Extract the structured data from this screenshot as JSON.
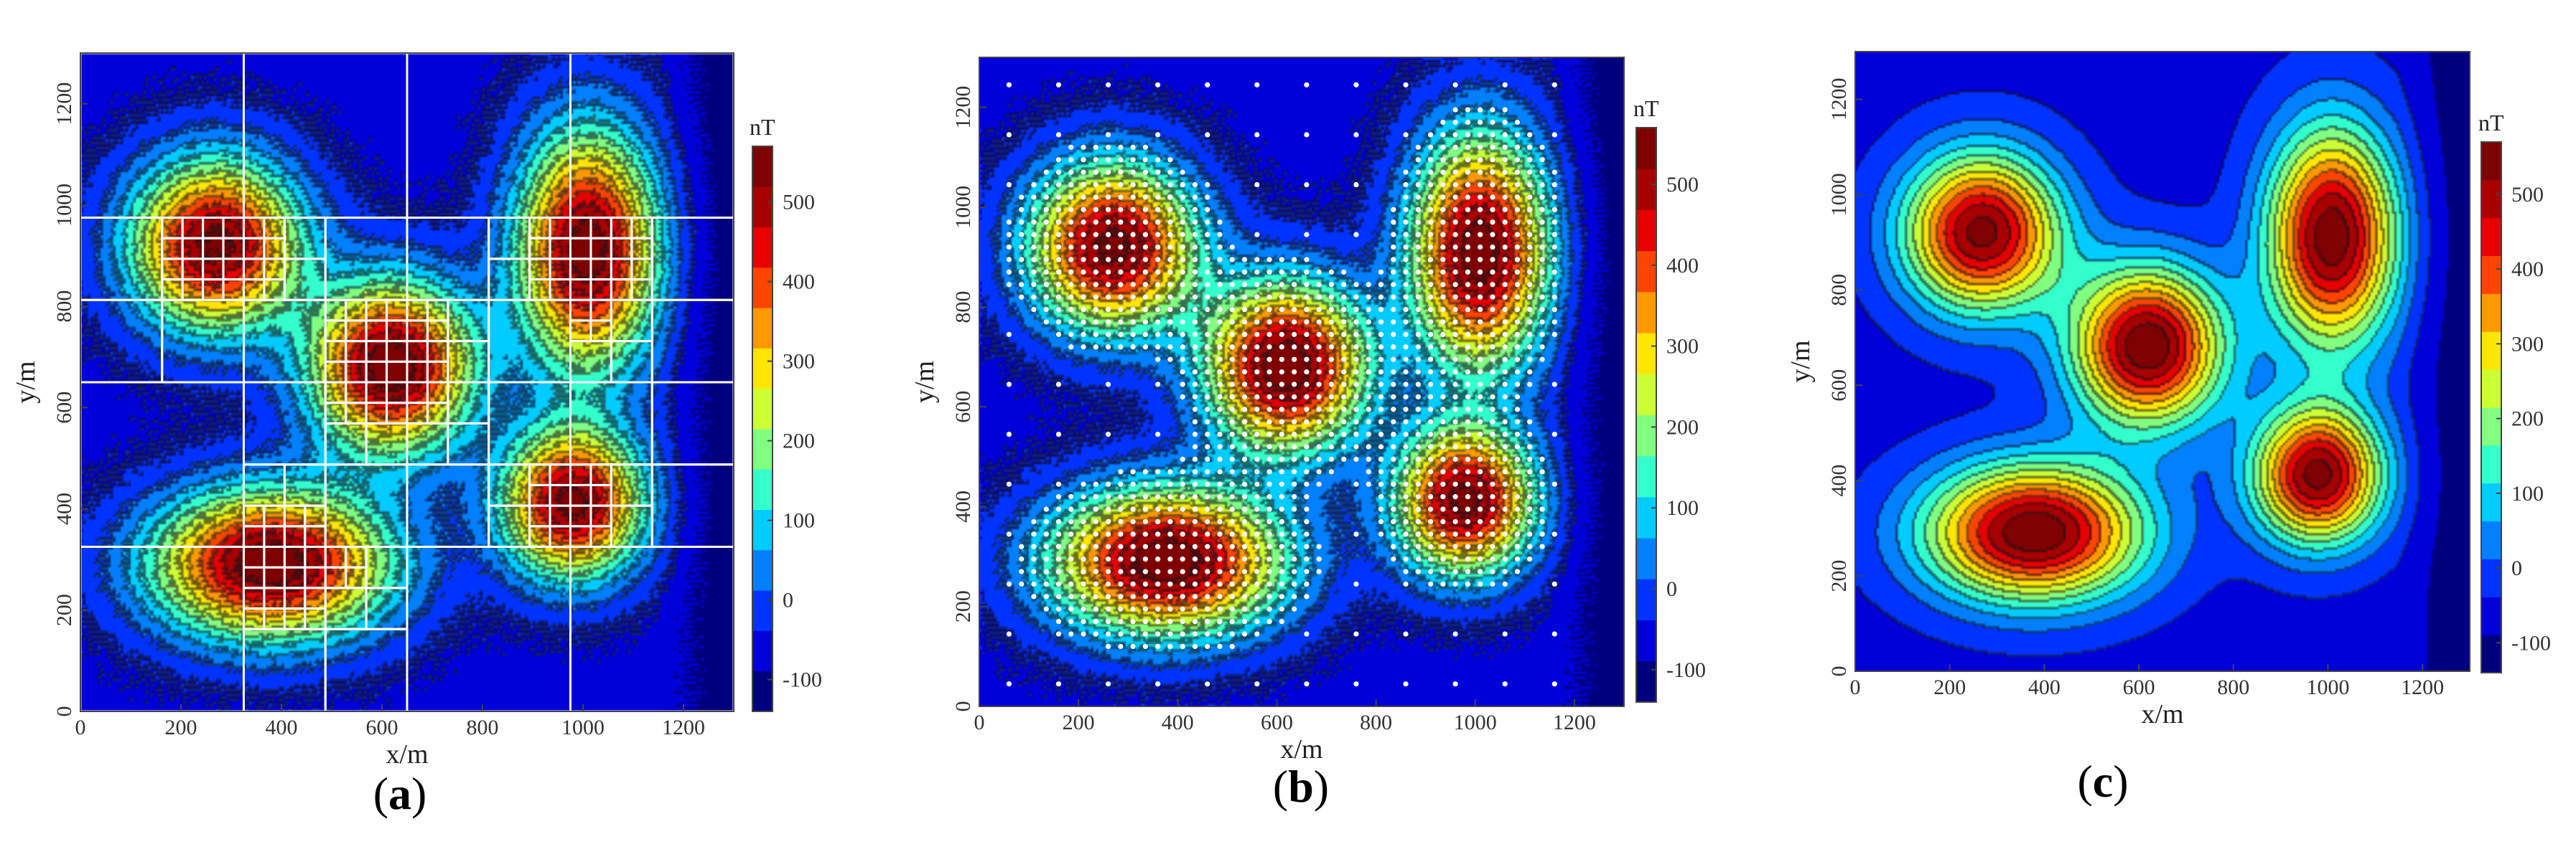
{
  "colormap": [
    "#00007f",
    "#0000d9",
    "#0033ff",
    "#0080ff",
    "#00ccff",
    "#33ffcc",
    "#80ff80",
    "#ccff33",
    "#ffe600",
    "#ff9900",
    "#ff4400",
    "#e60000",
    "#a80000",
    "#7f0000"
  ],
  "chart_data": [
    {
      "type": "heatmap",
      "panel_label": {
        "open": "(",
        "letter": "a",
        "close": ")"
      },
      "xlabel": "x/m",
      "ylabel": "y/m",
      "xlim": [
        0,
        1300
      ],
      "ylim": [
        0,
        1300
      ],
      "xticks": [
        "0",
        "200",
        "400",
        "600",
        "800",
        "1000",
        "1200"
      ],
      "yticks": [
        "0",
        "200",
        "400",
        "600",
        "800",
        "1000",
        "1200"
      ],
      "colorbar": {
        "unit": "nT",
        "range": [
          -140,
          570
        ],
        "ticks": [
          "-100",
          "0",
          "100",
          "200",
          "300",
          "400",
          "500"
        ]
      },
      "anomalies": [
        {
          "x": 270,
          "y": 920,
          "peak": 540
        },
        {
          "x": 620,
          "y": 680,
          "peak": 570
        },
        {
          "x": 1010,
          "y": 910,
          "peak": 560
        },
        {
          "x": 380,
          "y": 290,
          "peak": 570
        },
        {
          "x": 980,
          "y": 410,
          "peak": 540
        }
      ],
      "overlay": "adaptive-mesh"
    },
    {
      "type": "heatmap",
      "panel_label": {
        "open": "(",
        "letter": "b",
        "close": ")"
      },
      "xlabel": "x/m",
      "ylabel": "y/m",
      "xlim": [
        0,
        1300
      ],
      "ylim": [
        0,
        1300
      ],
      "xticks": [
        "0",
        "200",
        "400",
        "600",
        "800",
        "1000",
        "1200"
      ],
      "yticks": [
        "0",
        "200",
        "400",
        "600",
        "800",
        "1000",
        "1200"
      ],
      "colorbar": {
        "unit": "nT",
        "range": [
          -140,
          570
        ],
        "ticks": [
          "-100",
          "0",
          "100",
          "200",
          "300",
          "400",
          "500"
        ]
      },
      "anomalies": [
        {
          "x": 270,
          "y": 920,
          "peak": 540
        },
        {
          "x": 620,
          "y": 680,
          "peak": 570
        },
        {
          "x": 1010,
          "y": 910,
          "peak": 560
        },
        {
          "x": 380,
          "y": 290,
          "peak": 570
        },
        {
          "x": 980,
          "y": 410,
          "peak": 540
        }
      ],
      "overlay": "sample-points"
    },
    {
      "type": "heatmap",
      "panel_label": {
        "open": "(",
        "letter": "c",
        "close": ")"
      },
      "xlabel": "x/m",
      "ylabel": "y/m",
      "xlim": [
        0,
        1300
      ],
      "ylim": [
        0,
        1300
      ],
      "xticks": [
        "0",
        "200",
        "400",
        "600",
        "800",
        "1000",
        "1200"
      ],
      "yticks": [
        "0",
        "200",
        "400",
        "600",
        "800",
        "1000",
        "1200"
      ],
      "colorbar": {
        "unit": "nT",
        "range": [
          -140,
          570
        ],
        "ticks": [
          "-100",
          "0",
          "100",
          "200",
          "300",
          "400",
          "500"
        ]
      },
      "anomalies": [
        {
          "x": 270,
          "y": 920,
          "peak": 540
        },
        {
          "x": 620,
          "y": 680,
          "peak": 570
        },
        {
          "x": 1010,
          "y": 910,
          "peak": 560
        },
        {
          "x": 380,
          "y": 290,
          "peak": 570
        },
        {
          "x": 980,
          "y": 410,
          "peak": 540
        }
      ],
      "overlay": "none"
    }
  ]
}
